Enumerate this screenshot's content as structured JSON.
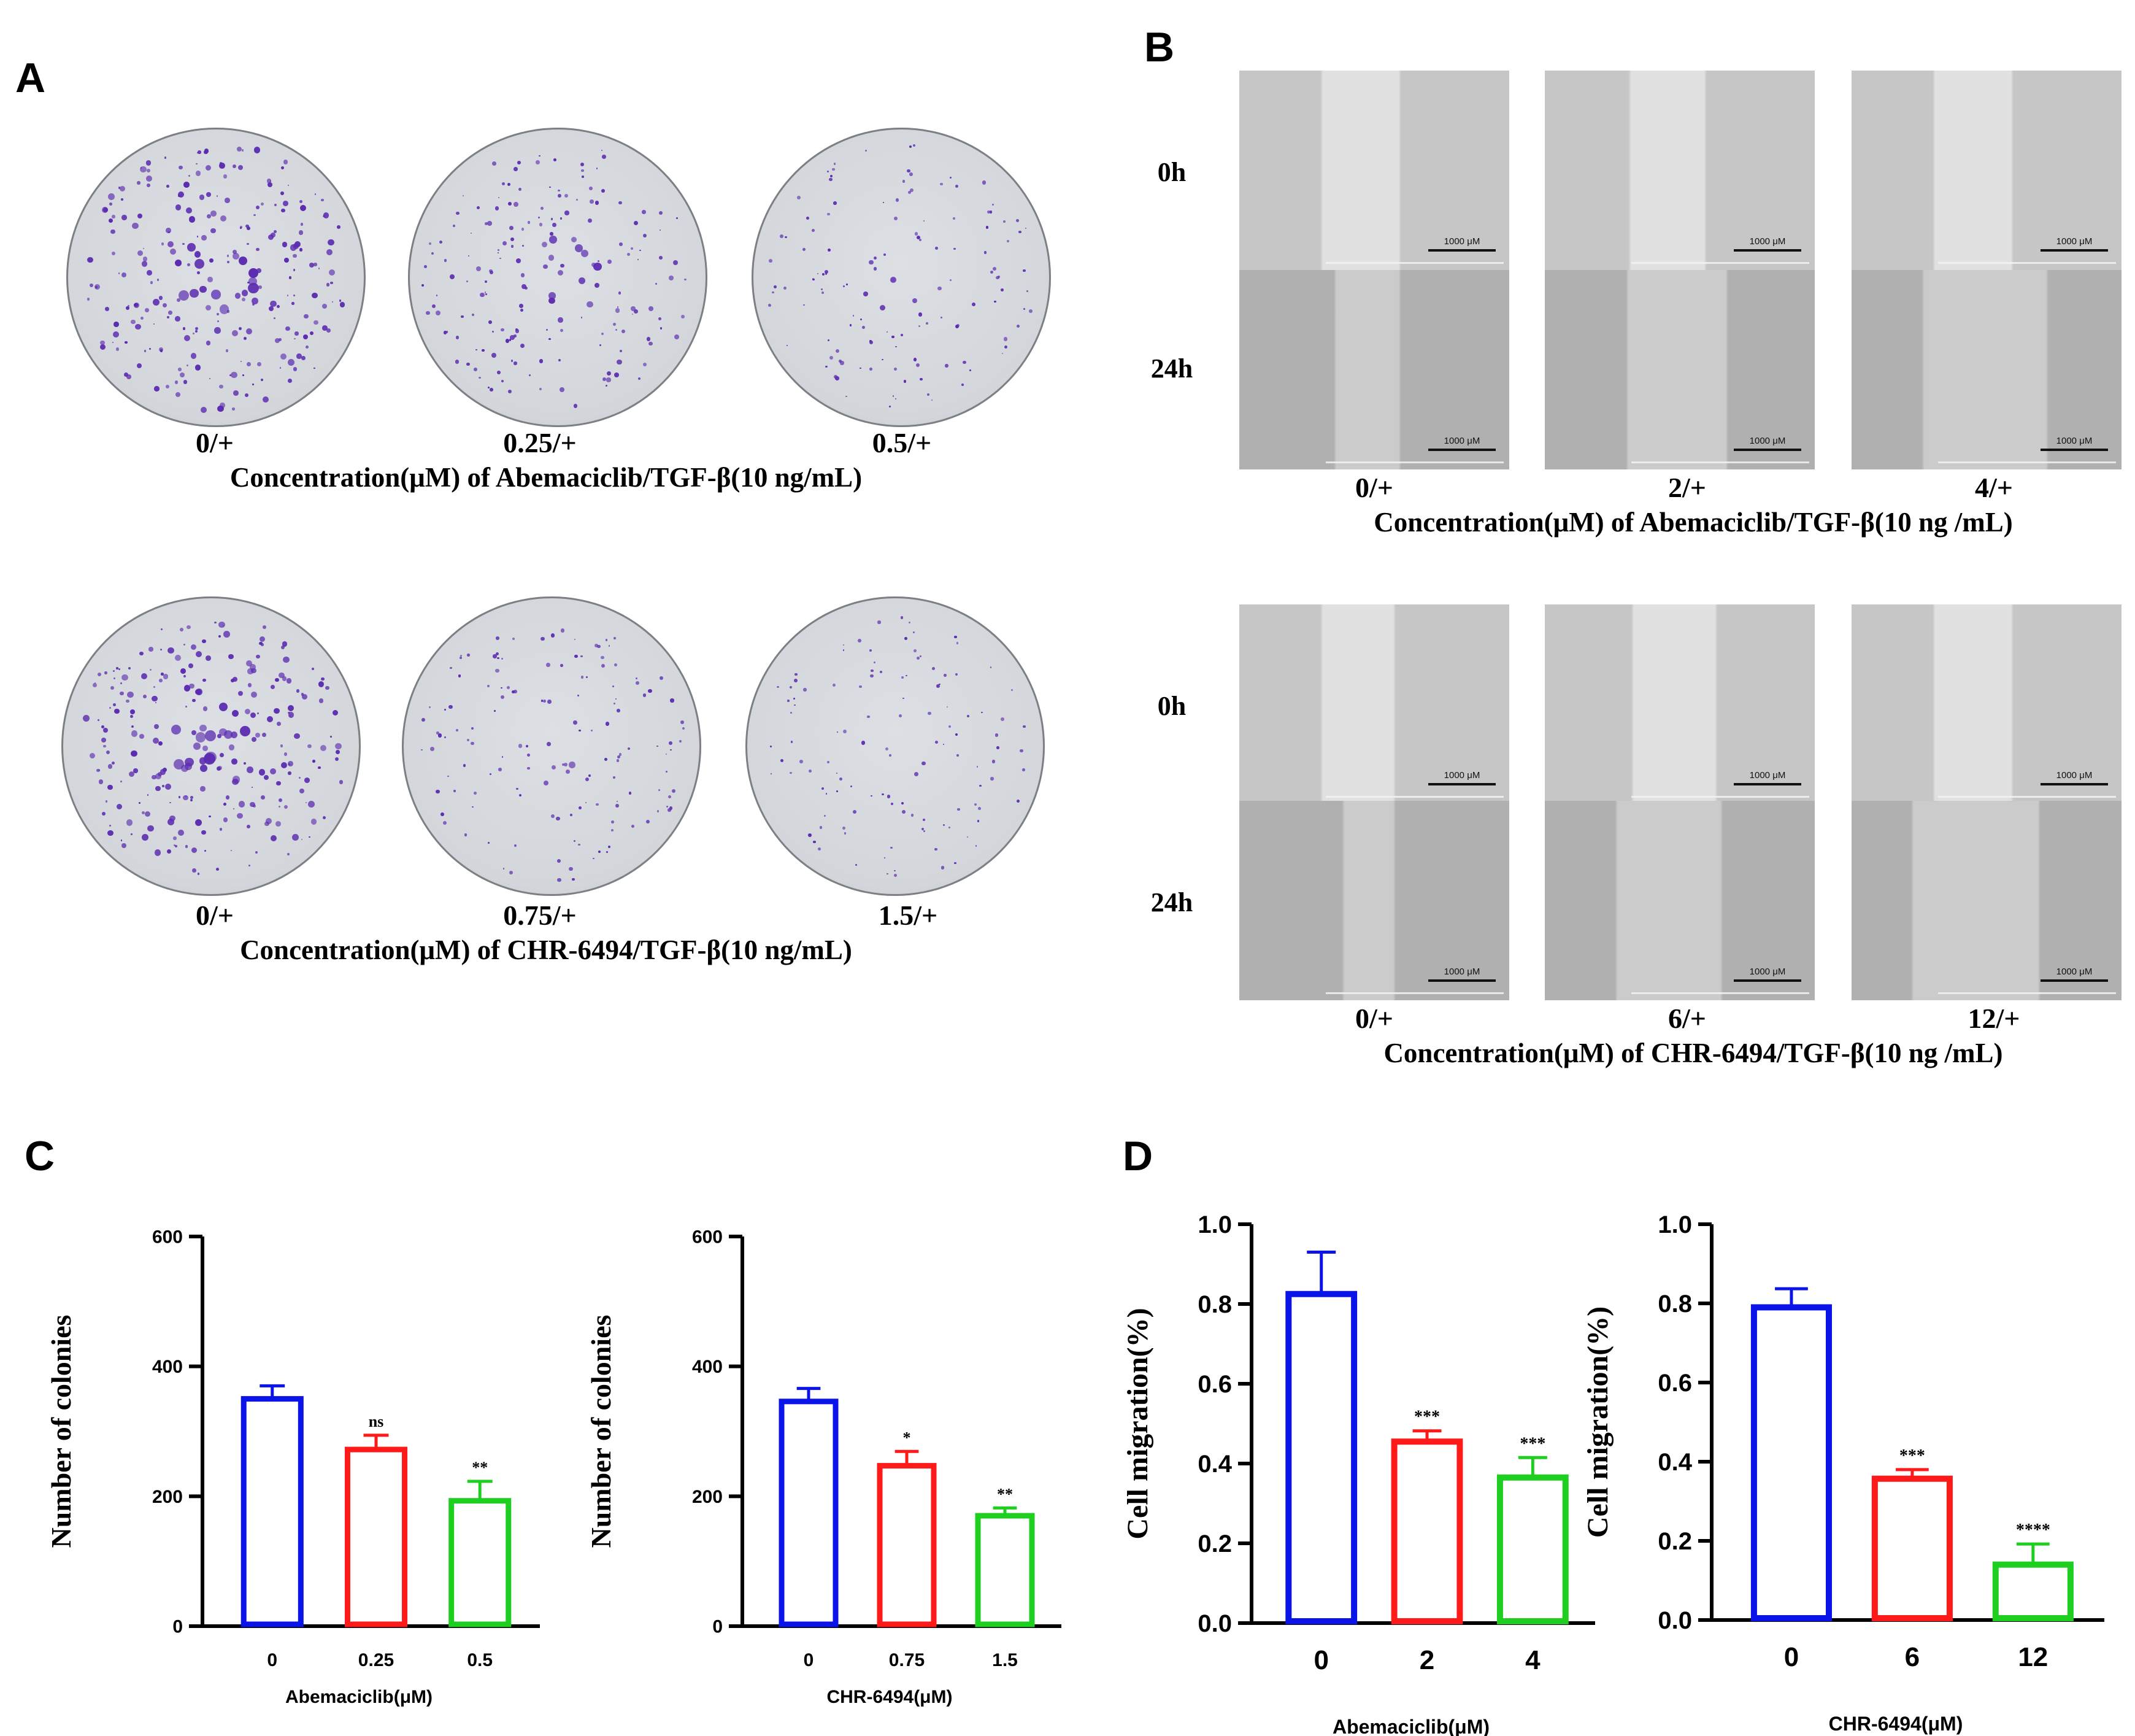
{
  "panels": {
    "A": "A",
    "B": "B",
    "C": "C",
    "D": "D"
  },
  "colony": {
    "row1": {
      "labels": [
        "0/+",
        "0.25/+",
        "0.5/+"
      ],
      "caption": "Concentration(μM) of Abemaciclib/TGF-β(10 ng/mL)"
    },
    "row2": {
      "labels": [
        "0/+",
        "0.75/+",
        "1.5/+"
      ],
      "caption": "Concentration(μM) of CHR-6494/TGF-β(10 ng/mL)"
    }
  },
  "wound": {
    "time_labels": [
      "0h",
      "24h"
    ],
    "scale_label": "1000 μM",
    "row1": {
      "labels": [
        "0/+",
        "2/+",
        "4/+"
      ],
      "caption": "Concentration(μM) of Abemaciclib/TGF-β(10 ng /mL)"
    },
    "row2": {
      "labels": [
        "0/+",
        "6/+",
        "12/+"
      ],
      "caption": "Concentration(μM) of CHR-6494/TGF-β(10 ng /mL)"
    }
  },
  "colors": {
    "blue": "#0a13e8",
    "red": "#ff1a1a",
    "green": "#1fcf1f",
    "dish_spot": "#5b2bb0"
  },
  "chart_data": [
    {
      "type": "bar",
      "panel": "C",
      "title": "",
      "categories": [
        "0",
        "0.25",
        "0.5"
      ],
      "values": [
        350,
        272,
        193
      ],
      "errors": [
        20,
        22,
        30
      ],
      "significance": [
        "",
        "ns",
        "**"
      ],
      "xlabel": "Abemaciclib(μM)",
      "ylabel": "Number of colonies",
      "ylim": [
        0,
        600
      ],
      "yticks": [
        0,
        200,
        400,
        600
      ],
      "ytick_labels": [
        "0",
        "200",
        "400",
        "600"
      ],
      "colors": [
        "#0a13e8",
        "#ff1a1a",
        "#1fcf1f"
      ]
    },
    {
      "type": "bar",
      "panel": "C",
      "title": "",
      "categories": [
        "0",
        "0.75",
        "1.5"
      ],
      "values": [
        346,
        247,
        170
      ],
      "errors": [
        20,
        22,
        12
      ],
      "significance": [
        "",
        "*",
        "**"
      ],
      "xlabel": "CHR-6494(μM)",
      "ylabel": "Number of colonies",
      "ylim": [
        0,
        600
      ],
      "yticks": [
        0,
        200,
        400,
        600
      ],
      "ytick_labels": [
        "0",
        "200",
        "400",
        "600"
      ],
      "colors": [
        "#0a13e8",
        "#ff1a1a",
        "#1fcf1f"
      ]
    },
    {
      "type": "bar",
      "panel": "D",
      "title": "",
      "categories": [
        "0",
        "2",
        "4"
      ],
      "values": [
        0.825,
        0.455,
        0.365
      ],
      "errors": [
        0.105,
        0.027,
        0.05
      ],
      "significance": [
        "",
        "***",
        "***"
      ],
      "xlabel": "Abemaciclib(μM)",
      "ylabel": "Cell migration(%)",
      "ylim": [
        0,
        1.0
      ],
      "yticks": [
        0,
        0.2,
        0.4,
        0.6,
        0.8,
        1.0
      ],
      "ytick_labels": [
        "0.0",
        "0.2",
        "0.4",
        "0.6",
        "0.8",
        "1.0"
      ],
      "colors": [
        "#0a13e8",
        "#ff1a1a",
        "#1fcf1f"
      ]
    },
    {
      "type": "bar",
      "panel": "D",
      "title": "",
      "categories": [
        "0",
        "6",
        "12"
      ],
      "values": [
        0.79,
        0.357,
        0.14
      ],
      "errors": [
        0.047,
        0.023,
        0.052
      ],
      "significance": [
        "",
        "***",
        "****"
      ],
      "xlabel": "CHR-6494(μM)",
      "ylabel": "Cell migration(%)",
      "ylim": [
        0,
        1.0
      ],
      "yticks": [
        0,
        0.2,
        0.4,
        0.6,
        0.8,
        1.0
      ],
      "ytick_labels": [
        "0.0",
        "0.2",
        "0.4",
        "0.6",
        "0.8",
        "1.0"
      ],
      "colors": [
        "#0a13e8",
        "#ff1a1a",
        "#1fcf1f"
      ]
    }
  ]
}
